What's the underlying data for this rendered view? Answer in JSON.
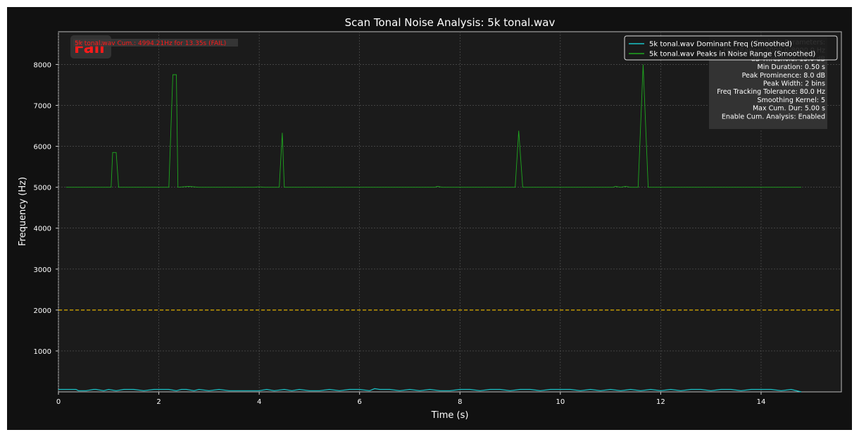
{
  "colors": {
    "figure_bg": "#111111",
    "axes_bg": "#1b1b1b",
    "text": "#ffffff",
    "grid": "#5a5a5a",
    "dominant": "#19c3c8",
    "peaks": "#1fa81f",
    "threshold_line": "#e0b000",
    "fail": "#ff1a1a",
    "params_box": "#333333"
  },
  "chart_data": {
    "type": "line",
    "title": "Scan Tonal Noise Analysis: 5k tonal.wav",
    "xlabel": "Time (s)",
    "ylabel": "Frequency (Hz)",
    "xlim": [
      0,
      15.6
    ],
    "ylim": [
      0,
      8800
    ],
    "xticks": [
      0,
      2,
      4,
      6,
      8,
      10,
      12,
      14
    ],
    "yticks": [
      1000,
      2000,
      3000,
      4000,
      5000,
      6000,
      7000,
      8000
    ],
    "grid": true,
    "legend_position": "top-right",
    "threshold_line": {
      "y": 2000,
      "style": "dashed"
    },
    "series": [
      {
        "name": "5k tonal.wav Dominant Freq (Smoothed)",
        "x": [
          0.0,
          0.1,
          0.35,
          0.4,
          0.55,
          0.7,
          0.75,
          0.9,
          1.0,
          1.15,
          1.3,
          1.5,
          1.7,
          1.9,
          2.0,
          2.2,
          2.35,
          2.45,
          2.55,
          2.7,
          2.8,
          3.0,
          3.2,
          3.4,
          3.6,
          3.8,
          4.0,
          4.15,
          4.3,
          4.5,
          4.65,
          4.8,
          5.0,
          5.2,
          5.4,
          5.6,
          5.8,
          6.0,
          6.2,
          6.3,
          6.4,
          6.6,
          6.8,
          7.0,
          7.2,
          7.4,
          7.6,
          7.8,
          8.0,
          8.2,
          8.4,
          8.6,
          8.8,
          9.0,
          9.2,
          9.4,
          9.6,
          9.8,
          10.0,
          10.2,
          10.4,
          10.6,
          10.8,
          11.0,
          11.2,
          11.4,
          11.6,
          11.8,
          12.0,
          12.2,
          12.4,
          12.6,
          12.8,
          13.0,
          13.2,
          13.4,
          13.6,
          13.8,
          14.0,
          14.2,
          14.4,
          14.6,
          14.8
        ],
        "y": [
          60,
          60,
          60,
          30,
          30,
          60,
          60,
          30,
          60,
          30,
          60,
          60,
          30,
          60,
          60,
          60,
          30,
          60,
          60,
          30,
          60,
          30,
          60,
          30,
          30,
          30,
          30,
          60,
          30,
          60,
          30,
          60,
          30,
          30,
          60,
          30,
          60,
          60,
          30,
          80,
          60,
          60,
          30,
          60,
          30,
          60,
          30,
          30,
          60,
          60,
          30,
          60,
          60,
          30,
          60,
          60,
          30,
          60,
          60,
          60,
          30,
          60,
          30,
          60,
          30,
          60,
          30,
          60,
          30,
          60,
          30,
          60,
          60,
          30,
          60,
          60,
          30,
          60,
          60,
          60,
          30,
          60,
          0
        ],
        "color": "#19c3c8"
      },
      {
        "name": "5k tonal.wav Peaks in Noise Range (Smoothed)",
        "x": [
          0.15,
          1.05,
          1.08,
          1.15,
          1.2,
          2.2,
          2.28,
          2.35,
          2.38,
          2.6,
          2.8,
          3.9,
          4.0,
          4.1,
          4.4,
          4.46,
          4.5,
          7.5,
          7.55,
          7.65,
          9.1,
          9.17,
          9.25,
          10.0,
          11.05,
          11.1,
          11.2,
          11.3,
          11.4,
          11.55,
          11.65,
          11.75,
          14.8
        ],
        "y": [
          5000,
          5000,
          5850,
          5850,
          5000,
          5000,
          7750,
          7750,
          5000,
          5020,
          5000,
          5000,
          5010,
          5000,
          5000,
          6330,
          5000,
          5000,
          5020,
          5000,
          5000,
          6380,
          5000,
          5000,
          5000,
          5020,
          5000,
          5020,
          5000,
          5000,
          8000,
          5000,
          5000
        ],
        "color": "#1fa81f"
      }
    ]
  },
  "fail_label": "Fail",
  "annotation": "5k tonal.wav Cum.: 4994.21Hz for 13.35s (FAIL)",
  "params": [
    "Analysis Parameters:",
    "Freq Range: 2000.0-8000.0 Hz",
    "dB Threshold: 15.0 dB",
    "Min Duration: 0.50 s",
    "Peak Prominence: 8.0 dB",
    "Peak Width: 2 bins",
    "Freq Tracking Tolerance: 80.0 Hz",
    "Smoothing Kernel: 5",
    "Max Cum. Dur: 5.00 s",
    "Enable Cum. Analysis: Enabled"
  ]
}
